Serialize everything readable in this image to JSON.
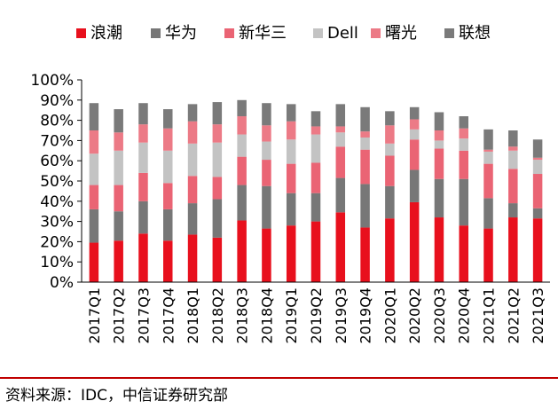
{
  "chart_data": {
    "type": "bar",
    "stacked": true,
    "categories": [
      "2017Q1",
      "2017Q2",
      "2017Q3",
      "2017Q4",
      "2018Q1",
      "2018Q2",
      "2018Q3",
      "2018Q4",
      "2019Q1",
      "2019Q2",
      "2019Q3",
      "2019Q4",
      "2020Q1",
      "2020Q2",
      "2020Q3",
      "2020Q4",
      "2021Q1",
      "2021Q2",
      "2021Q3"
    ],
    "series": [
      {
        "name": "浪潮",
        "color": "#e8101d",
        "values": [
          19.5,
          20.5,
          24,
          20.5,
          23.5,
          22,
          30.5,
          26.5,
          28,
          30,
          34.5,
          27,
          31.5,
          39.5,
          32,
          28,
          26.5,
          32,
          31.5
        ]
      },
      {
        "name": "华为",
        "color": "#777777",
        "values": [
          16.5,
          14.5,
          16,
          15.5,
          15.5,
          19,
          17.5,
          21,
          16,
          14,
          17,
          21.5,
          16,
          16,
          19,
          23,
          15,
          7,
          5
        ]
      },
      {
        "name": "新华三",
        "color": "#ea6474",
        "values": [
          12,
          13,
          14,
          13,
          13.5,
          11,
          14,
          13,
          14.5,
          15,
          15.5,
          17,
          15,
          15,
          15,
          14,
          17,
          17,
          17
        ]
      },
      {
        "name": "Dell",
        "color": "#c3c3c3",
        "values": [
          15.5,
          17,
          15,
          16,
          16,
          17,
          11,
          9,
          12,
          14,
          7,
          6,
          6,
          5,
          4,
          6,
          6,
          9,
          7
        ]
      },
      {
        "name": "曙光",
        "color": "#ec7a86",
        "values": [
          11.5,
          9,
          9,
          11,
          11,
          9,
          9,
          8,
          9,
          4,
          3,
          3,
          9,
          5,
          5,
          5,
          1,
          2,
          1
        ]
      },
      {
        "name": "联想",
        "color": "#7a7a7a",
        "values": [
          13.5,
          11.5,
          10.5,
          9.5,
          8.5,
          11,
          8,
          11,
          8.5,
          7.5,
          11,
          12,
          7,
          6,
          9,
          6,
          10,
          8,
          9
        ]
      }
    ],
    "ylim": [
      0,
      100
    ],
    "yticks": [
      "0%",
      "10%",
      "20%",
      "30%",
      "40%",
      "50%",
      "60%",
      "70%",
      "80%",
      "90%",
      "100%"
    ],
    "legend_position": "top",
    "grid": false
  },
  "source": "资料来源：IDC，中信证券研究部"
}
